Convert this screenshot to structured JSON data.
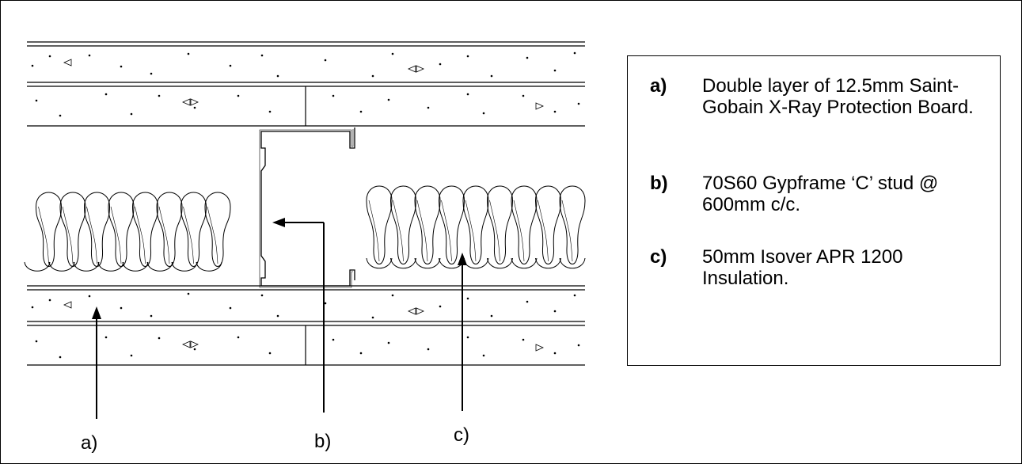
{
  "callouts": {
    "a": "a)",
    "b": "b)",
    "c": "c)"
  },
  "key": {
    "items": [
      {
        "letter": "a)",
        "text": "Double layer of 12.5mm Saint-Gobain X-Ray Protection Board."
      },
      {
        "letter": "b)",
        "text": "70S60 Gypframe ‘C’ stud @ 600mm c/c."
      },
      {
        "letter": "c)",
        "text": "50mm Isover APR 1200 Insulation."
      }
    ]
  }
}
